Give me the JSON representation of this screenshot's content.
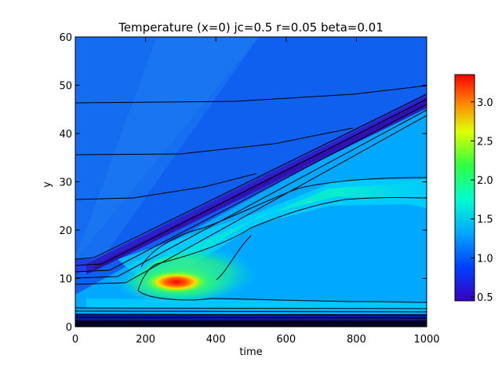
{
  "chart_data": {
    "type": "heatmap",
    "title": "Temperature (x=0) jc=0.5 r=0.05 beta=0.01",
    "xlabel": "time",
    "ylabel": "y",
    "xlim": [
      0,
      1000
    ],
    "ylim": [
      0,
      60
    ],
    "x_ticks": [
      0,
      200,
      400,
      600,
      800,
      1000
    ],
    "y_ticks": [
      0,
      10,
      20,
      30,
      40,
      50,
      60
    ],
    "colorbar": {
      "range": [
        0.45,
        3.35
      ],
      "ticks": [
        0.5,
        1.0,
        1.5,
        2.0,
        2.5,
        3.0
      ],
      "tick_labels": [
        "0.5",
        "1.0",
        "1.5",
        "2.0",
        "2.5",
        "3.0"
      ],
      "colormap": "rainbow"
    },
    "grid": false
  }
}
